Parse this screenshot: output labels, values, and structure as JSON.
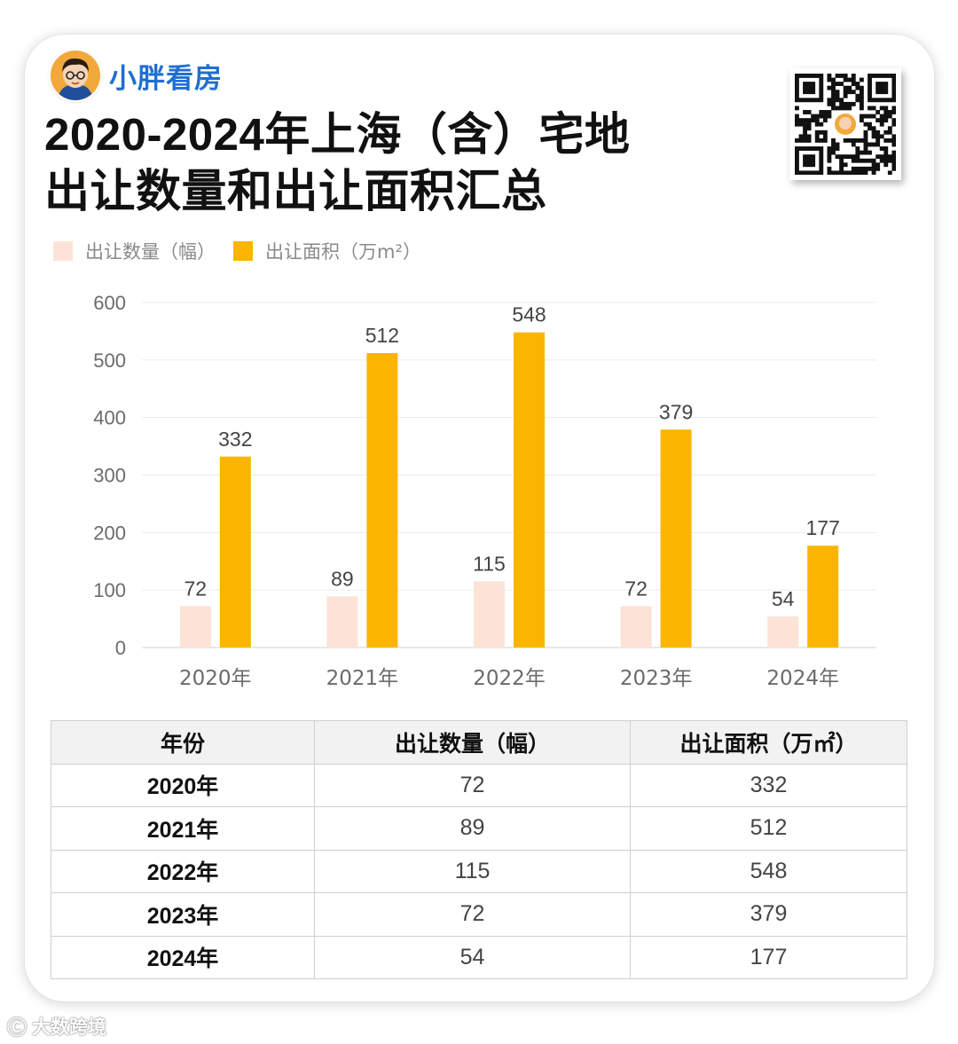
{
  "brand": {
    "name": "小胖看房"
  },
  "title": {
    "line1": "2020-2024年上海（含）宅地",
    "line2": "出让数量和出让面积汇总"
  },
  "legend": [
    {
      "label": "出让数量（幅）",
      "color": "#fde3d6"
    },
    {
      "label": "出让面积（万m²）",
      "color": "#fbb500"
    }
  ],
  "chart_data": {
    "type": "bar",
    "categories": [
      "2020年",
      "2021年",
      "2022年",
      "2023年",
      "2024年"
    ],
    "series": [
      {
        "name": "出让数量（幅）",
        "values": [
          72,
          89,
          115,
          72,
          54
        ],
        "color": "#fde3d6"
      },
      {
        "name": "出让面积（万m²）",
        "values": [
          332,
          512,
          548,
          379,
          177
        ],
        "color": "#fbb500"
      }
    ],
    "ylim": [
      0,
      600
    ],
    "yticks": [
      0,
      100,
      200,
      300,
      400,
      500,
      600
    ],
    "grid": true,
    "legend_position": "top-left"
  },
  "table": {
    "headers": [
      "年份",
      "出让数量（幅）",
      "出让面积（万㎡）"
    ],
    "rows": [
      [
        "2020年",
        "72",
        "332"
      ],
      [
        "2021年",
        "89",
        "512"
      ],
      [
        "2022年",
        "115",
        "548"
      ],
      [
        "2023年",
        "72",
        "379"
      ],
      [
        "2024年",
        "54",
        "177"
      ]
    ]
  },
  "watermark": {
    "text": "大数跨境",
    "icon": "kol-logo-icon"
  }
}
